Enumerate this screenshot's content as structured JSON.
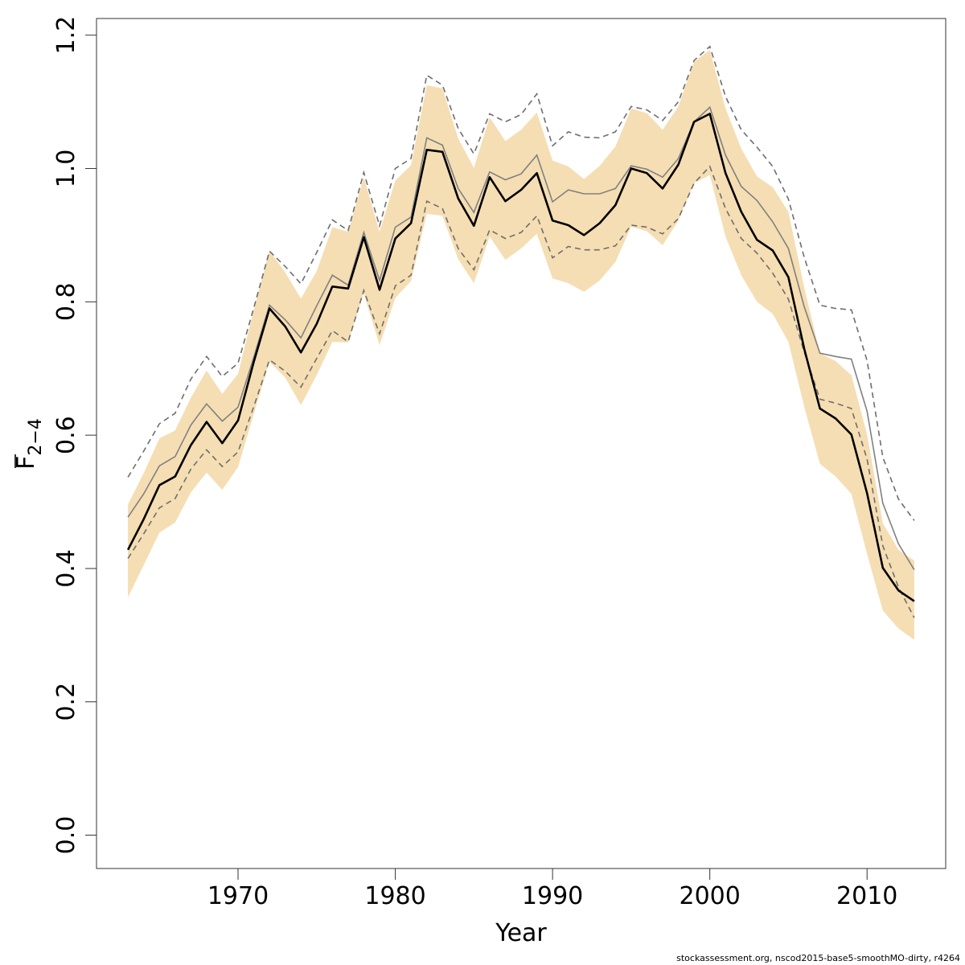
{
  "chart_data": {
    "type": "line",
    "xlabel": "Year",
    "ylabel_main": "F",
    "ylabel_sub": "2−4",
    "xlim": [
      1961,
      2015
    ],
    "ylim": [
      -0.05,
      1.225
    ],
    "x_ticks": [
      1970,
      1980,
      1990,
      2000,
      2010
    ],
    "y_ticks": [
      "0.0",
      "0.2",
      "0.4",
      "0.6",
      "0.8",
      "1.0",
      "1.2"
    ],
    "x": [
      1963,
      1964,
      1965,
      1966,
      1967,
      1968,
      1969,
      1970,
      1971,
      1972,
      1973,
      1974,
      1975,
      1976,
      1977,
      1978,
      1979,
      1980,
      1981,
      1982,
      1983,
      1984,
      1985,
      1986,
      1987,
      1988,
      1989,
      1990,
      1991,
      1992,
      1993,
      1994,
      1995,
      1996,
      1997,
      1998,
      1999,
      2000,
      2001,
      2002,
      2003,
      2004,
      2005,
      2006,
      2007,
      2008,
      2009,
      2010,
      2011,
      2012,
      2013
    ],
    "series": [
      {
        "role": "estimate",
        "values": [
          0.428,
          0.474,
          0.525,
          0.538,
          0.585,
          0.62,
          0.588,
          0.622,
          0.71,
          0.79,
          0.763,
          0.724,
          0.767,
          0.823,
          0.82,
          0.897,
          0.818,
          0.895,
          0.918,
          1.028,
          1.025,
          0.955,
          0.914,
          0.987,
          0.951,
          0.968,
          0.993,
          0.922,
          0.915,
          0.9,
          0.918,
          0.945,
          1.0,
          0.993,
          0.97,
          1.006,
          1.07,
          1.082,
          0.993,
          0.935,
          0.893,
          0.877,
          0.837,
          0.73,
          0.64,
          0.625,
          0.601,
          0.513,
          0.401,
          0.367,
          0.351
        ]
      },
      {
        "role": "ci_lower",
        "values": [
          0.357,
          0.405,
          0.454,
          0.469,
          0.514,
          0.544,
          0.518,
          0.552,
          0.632,
          0.71,
          0.686,
          0.645,
          0.69,
          0.74,
          0.739,
          0.813,
          0.735,
          0.806,
          0.831,
          0.932,
          0.929,
          0.864,
          0.828,
          0.898,
          0.863,
          0.88,
          0.902,
          0.835,
          0.828,
          0.815,
          0.832,
          0.86,
          0.913,
          0.906,
          0.885,
          0.922,
          0.978,
          0.99,
          0.898,
          0.84,
          0.8,
          0.782,
          0.74,
          0.643,
          0.557,
          0.538,
          0.512,
          0.422,
          0.337,
          0.31,
          0.293
        ]
      },
      {
        "role": "ci_upper",
        "values": [
          0.496,
          0.543,
          0.595,
          0.607,
          0.656,
          0.697,
          0.662,
          0.692,
          0.788,
          0.877,
          0.844,
          0.805,
          0.846,
          0.912,
          0.905,
          0.987,
          0.905,
          0.982,
          1.005,
          1.125,
          1.12,
          1.045,
          1.001,
          1.077,
          1.041,
          1.058,
          1.084,
          1.012,
          1.003,
          0.984,
          1.004,
          1.033,
          1.09,
          1.083,
          1.058,
          1.093,
          1.16,
          1.178,
          1.09,
          1.03,
          0.988,
          0.972,
          0.935,
          0.822,
          0.723,
          0.711,
          0.69,
          0.601,
          0.468,
          0.428,
          0.412
        ]
      },
      {
        "role": "comparison",
        "values": [
          0.477,
          0.512,
          0.554,
          0.568,
          0.615,
          0.647,
          0.621,
          0.642,
          0.717,
          0.795,
          0.773,
          0.746,
          0.794,
          0.84,
          0.825,
          0.904,
          0.832,
          0.912,
          0.927,
          1.046,
          1.035,
          0.97,
          0.934,
          0.995,
          0.983,
          0.992,
          1.02,
          0.95,
          0.968,
          0.962,
          0.962,
          0.97,
          1.004,
          0.999,
          0.987,
          1.015,
          1.07,
          1.092,
          1.02,
          0.973,
          0.952,
          0.92,
          0.88,
          0.793,
          0.723,
          0.718,
          0.714,
          0.636,
          0.498,
          0.437,
          0.398
        ]
      },
      {
        "role": "comparison_lower",
        "values": [
          0.415,
          0.452,
          0.491,
          0.505,
          0.549,
          0.578,
          0.553,
          0.575,
          0.643,
          0.713,
          0.696,
          0.672,
          0.715,
          0.757,
          0.74,
          0.817,
          0.752,
          0.824,
          0.84,
          0.951,
          0.94,
          0.88,
          0.848,
          0.908,
          0.895,
          0.904,
          0.929,
          0.866,
          0.883,
          0.878,
          0.878,
          0.884,
          0.915,
          0.912,
          0.902,
          0.925,
          0.978,
          1.003,
          0.94,
          0.895,
          0.873,
          0.843,
          0.804,
          0.725,
          0.654,
          0.648,
          0.64,
          0.564,
          0.434,
          0.372,
          0.326
        ]
      },
      {
        "role": "comparison_upper",
        "values": [
          0.537,
          0.576,
          0.617,
          0.633,
          0.684,
          0.718,
          0.688,
          0.708,
          0.791,
          0.876,
          0.853,
          0.827,
          0.874,
          0.923,
          0.907,
          0.994,
          0.914,
          1.0,
          1.015,
          1.14,
          1.125,
          1.06,
          1.022,
          1.082,
          1.07,
          1.081,
          1.112,
          1.034,
          1.055,
          1.047,
          1.046,
          1.055,
          1.093,
          1.088,
          1.072,
          1.1,
          1.162,
          1.183,
          1.108,
          1.058,
          1.032,
          1.003,
          0.954,
          0.867,
          0.795,
          0.79,
          0.788,
          0.712,
          0.567,
          0.504,
          0.472
        ]
      }
    ],
    "grid": false,
    "colors": {
      "band": "#f5deb3",
      "estimate": "#000000",
      "comparison": "#808080",
      "comparison_ci": "#6e6e6e"
    }
  },
  "footer": "stockassessment.org, nscod2015-base5-smoothMO-dirty, r4264"
}
